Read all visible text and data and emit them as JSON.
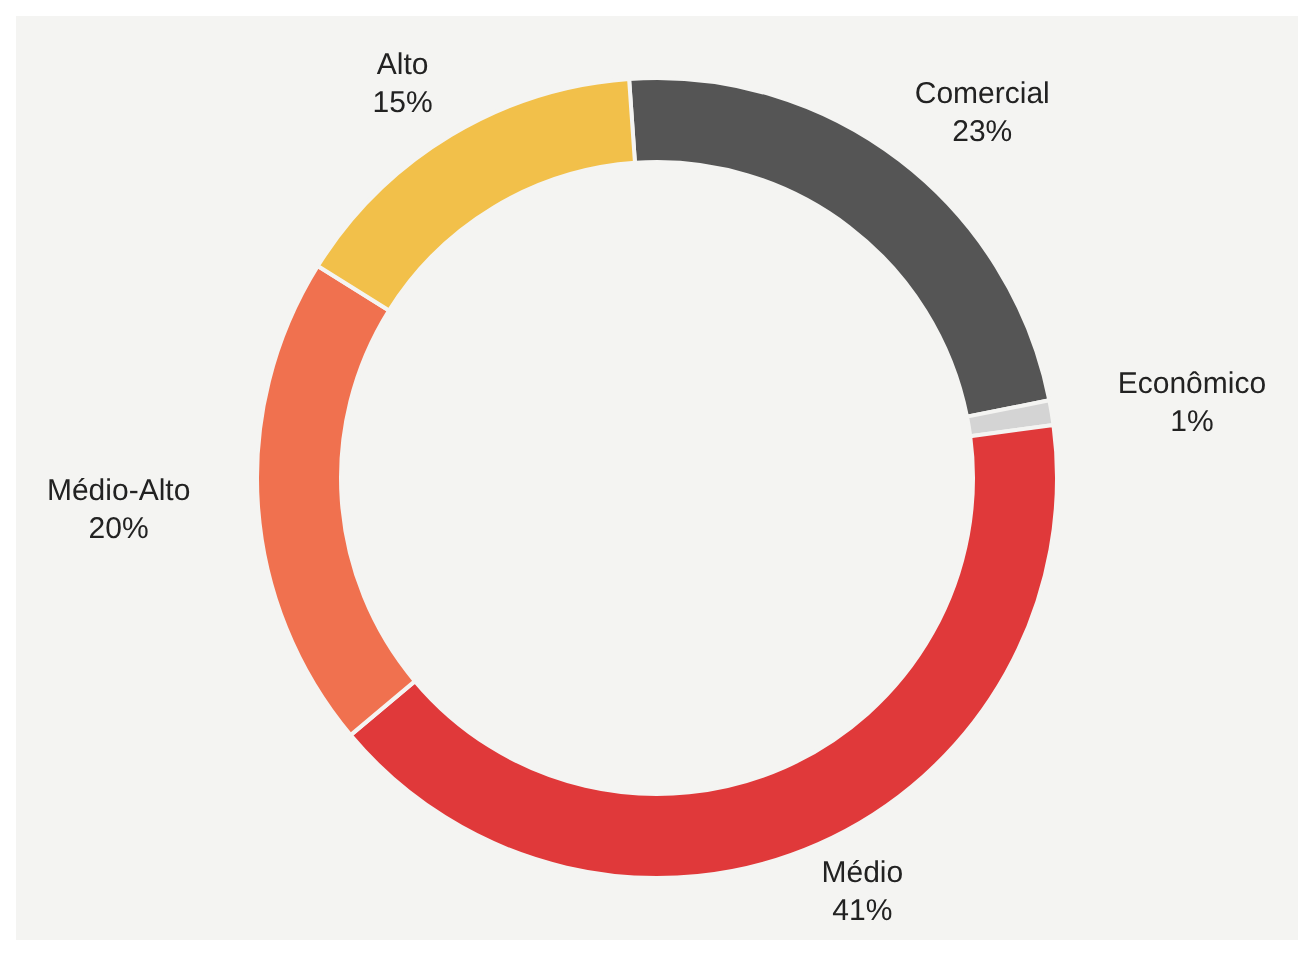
{
  "chart_data": {
    "type": "donut",
    "categories": [
      "Comercial",
      "Econômico",
      "Médio",
      "Médio-Alto",
      "Alto"
    ],
    "values": [
      23,
      1,
      41,
      20,
      15
    ],
    "colors": [
      "#555555",
      "#d4d4d4",
      "#e0393a",
      "#f0714f",
      "#f2c04a"
    ],
    "value_labels": [
      "23%",
      "1%",
      "41%",
      "20%",
      "15%"
    ],
    "legend": false
  }
}
